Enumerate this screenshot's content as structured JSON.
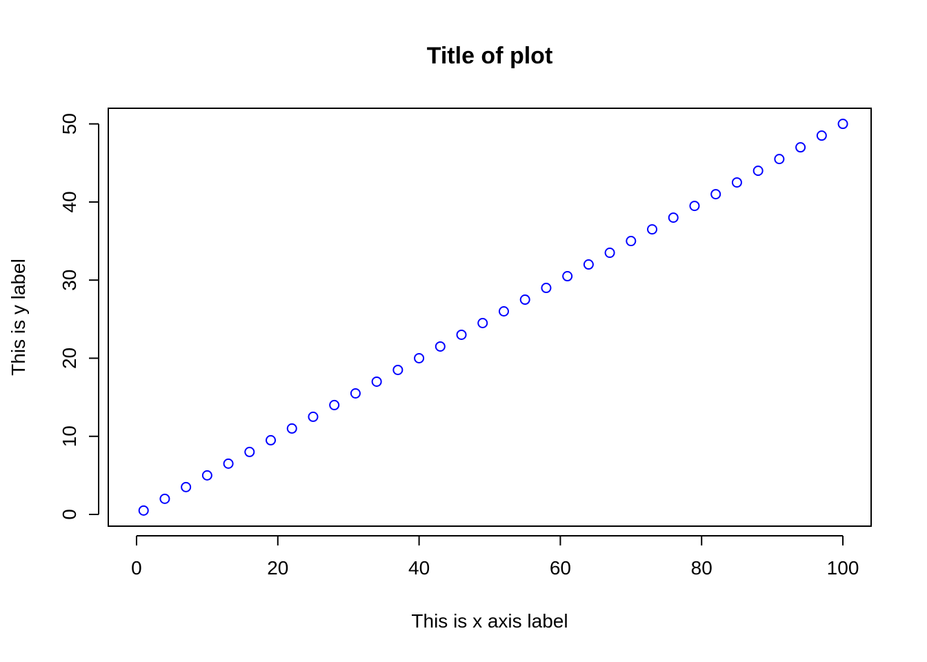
{
  "chart_data": {
    "type": "scatter",
    "title": "Title of plot",
    "xlabel": "This is x axis label",
    "ylabel": "This is y label",
    "xlim": [
      -4,
      104
    ],
    "ylim": [
      -1.5,
      52
    ],
    "x_ticks": [
      0,
      20,
      40,
      60,
      80,
      100
    ],
    "y_ticks": [
      0,
      10,
      20,
      30,
      40,
      50
    ],
    "grid": false,
    "legend": "none",
    "marker": "open-circle",
    "point_color": "#0000ff",
    "axis_color": "#000000",
    "x": [
      1,
      4,
      7,
      10,
      13,
      16,
      19,
      22,
      25,
      28,
      31,
      34,
      37,
      40,
      43,
      46,
      49,
      52,
      55,
      58,
      61,
      64,
      67,
      70,
      73,
      76,
      79,
      82,
      85,
      88,
      91,
      94,
      97,
      100
    ],
    "y": [
      0.5,
      2,
      3.5,
      5,
      6.5,
      8,
      9.5,
      11,
      12.5,
      14,
      15.5,
      17,
      18.5,
      20,
      21.5,
      23,
      24.5,
      26,
      27.5,
      29,
      30.5,
      32,
      33.5,
      35,
      36.5,
      38,
      39.5,
      41,
      42.5,
      44,
      45.5,
      47,
      48.5,
      50
    ]
  }
}
